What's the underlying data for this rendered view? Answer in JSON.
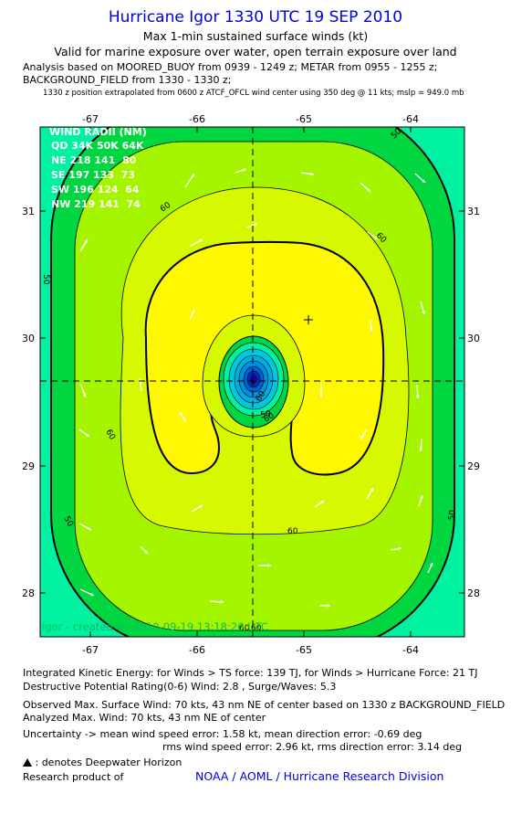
{
  "header": {
    "title": "Hurricane Igor 1330 UTC 19 SEP 2010",
    "subtitle": "Max 1-min sustained surface winds (kt)",
    "valid": "Valid for marine exposure over water, open terrain exposure over land",
    "analysis1": "Analysis based on MOORED_BUOY from 0939 - 1249 z; METAR from 0955 - 1255 z;",
    "analysis2": "BACKGROUND_FIELD from 1330 - 1330 z;",
    "position_note": "1330 z position extrapolated from 0600 z ATCF_OFCL wind center using 350 deg @ 11 kts; mslp = 949.0 mb"
  },
  "map": {
    "x_ticks": [
      "-67",
      "-66",
      "-65",
      "-64"
    ],
    "y_ticks": [
      "31",
      "30",
      "29",
      "28"
    ],
    "contour_labels": [
      "50",
      "50",
      "50",
      "50",
      "60",
      "60",
      "60",
      "60",
      "60",
      "60",
      "50",
      "60",
      "60"
    ],
    "watermark": "Igor - created on 2010-09-19 13:18:26 UTC",
    "colors": {
      "level_40": "#00f2a0",
      "level_50": "#00d640",
      "level_55": "#a6f500",
      "level_60": "#d6f800",
      "level_65": "#fff800",
      "core": "#00c8e0"
    }
  },
  "wind_radii": {
    "title": "WIND RADII (NM)",
    "header": "QD 34K 50K 64K",
    "rows": [
      "NE 218 141  80",
      "SE 197 133  73",
      "SW 196 124  64",
      "NW 219 141  74"
    ]
  },
  "footer": {
    "ike": "Integrated Kinetic Energy:  for Winds > TS force: 139 TJ,  for Winds > Hurricane Force: 21 TJ",
    "dpr": "Destructive Potential Rating(0-6)   Wind: 2.8 , Surge/Waves: 5.3",
    "obs": "Observed Max. Surface Wind: 70 kts, 43 nm NE of center based on 1330 z BACKGROUND_FIELD",
    "analyzed": "Analyzed Max. Wind: 70 kts, 43 nm NE of center",
    "unc1": "Uncertainty -> mean wind speed error: 1.58 kt,   mean direction error:  -0.69 deg",
    "unc2": "rms wind speed error: 2.96 kt,   rms direction error: 3.14 deg",
    "dwh": ": denotes Deepwater Horizon",
    "research": "Research product of",
    "org": "NOAA / AOML / Hurricane Research Division"
  }
}
